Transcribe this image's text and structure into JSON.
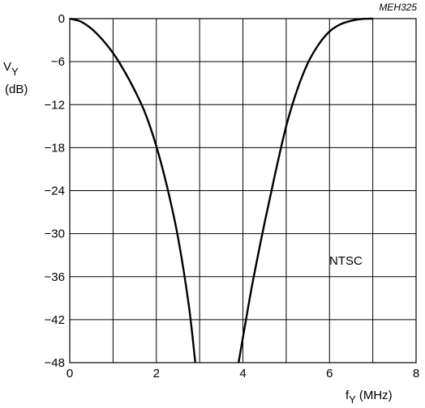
{
  "chart_data": {
    "type": "line",
    "figure_code": "MEH325",
    "y_axis": {
      "symbol": "V",
      "subscript": "Y",
      "unit": "(dB)",
      "min": -48,
      "max": 0,
      "ticks": [
        0,
        -6,
        -12,
        -18,
        -24,
        -30,
        -36,
        -42,
        -48
      ],
      "tick_labels": [
        "0",
        "−6",
        "−12",
        "−18",
        "−24",
        "−30",
        "−36",
        "−42",
        "−48"
      ]
    },
    "x_axis": {
      "symbol": "f",
      "subscript": "Y",
      "unit": "(MHz)",
      "min": 0,
      "max": 8,
      "ticks": [
        0,
        2,
        4,
        6,
        8
      ],
      "tick_labels": [
        "0",
        "2",
        "4",
        "6",
        "8"
      ]
    },
    "grid": true,
    "annotation": "NTSC",
    "series": [
      {
        "x": [
          0,
          0.25,
          0.5,
          0.75,
          1.0,
          1.25,
          1.5,
          1.75,
          2.0,
          2.25,
          2.5,
          2.75,
          2.9
        ],
        "y": [
          0,
          -0.4,
          -1.4,
          -2.9,
          -4.8,
          -7.2,
          -10.0,
          -13.3,
          -17.8,
          -23.5,
          -30.5,
          -40.0,
          -48
        ]
      },
      {
        "x": [
          3.9,
          4.1,
          4.25,
          4.5,
          4.75,
          5.0,
          5.25,
          5.5,
          5.75,
          6.0,
          6.25,
          6.5,
          6.75,
          7.0
        ],
        "y": [
          -48,
          -41.0,
          -36.0,
          -28.5,
          -21.5,
          -15.0,
          -10.0,
          -6.2,
          -3.6,
          -1.8,
          -0.8,
          -0.3,
          -0.05,
          0
        ]
      }
    ]
  }
}
